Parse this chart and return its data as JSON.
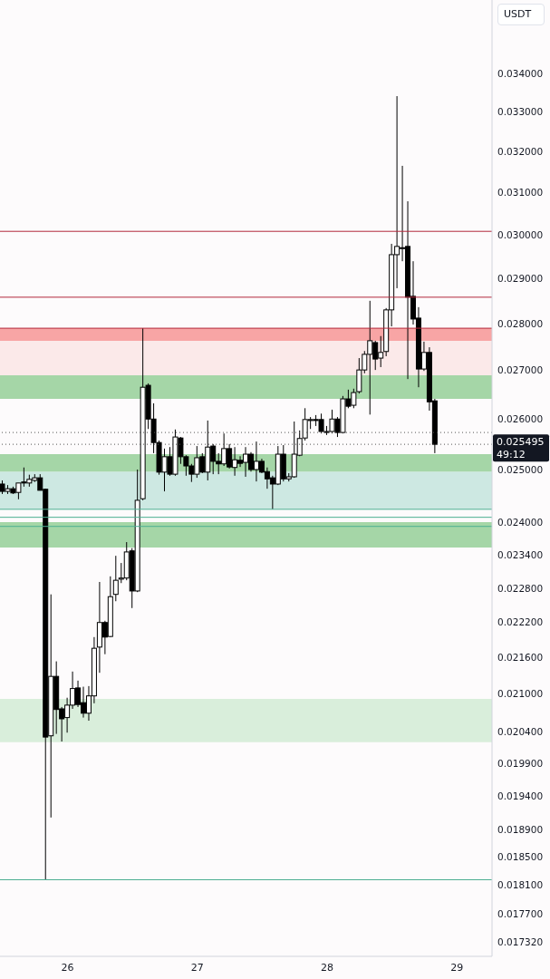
{
  "chart_data": {
    "type": "candlestick",
    "log": true,
    "annotations": [
      "USDT",
      "49:12"
    ],
    "x": [
      25.5,
      25.5417,
      25.5833,
      25.625,
      25.6667,
      25.7083,
      25.75,
      25.7917,
      25.8333,
      25.875,
      25.9167,
      25.9583,
      26,
      26.0417,
      26.0833,
      26.125,
      26.1667,
      26.2083,
      26.25,
      26.2917,
      26.3333,
      26.375,
      26.4167,
      26.4583,
      26.5,
      26.5417,
      26.5833,
      26.625,
      26.6667,
      26.7083,
      26.75,
      26.7917,
      26.8333,
      26.875,
      26.9167,
      26.9583,
      27,
      27.0417,
      27.0833,
      27.125,
      27.1667,
      27.2083,
      27.25,
      27.2917,
      27.3333,
      27.375,
      27.4167,
      27.4583,
      27.5,
      27.5417,
      27.5833,
      27.625,
      27.6667,
      27.7083,
      27.75,
      27.7917,
      27.8333,
      27.875,
      27.9167,
      27.9583,
      28,
      28.0417,
      28.0833,
      28.125,
      28.1667,
      28.2083,
      28.25,
      28.2917,
      28.3333,
      28.375,
      28.4167,
      28.4583,
      28.5,
      28.5417,
      28.5833,
      28.625,
      28.6667,
      28.7083,
      28.75,
      28.7917,
      28.8333
    ],
    "ohlc": [
      [
        0.02472,
        0.02479,
        0.02453,
        0.02458
      ],
      [
        0.02458,
        0.0247,
        0.02453,
        0.02463
      ],
      [
        0.02463,
        0.02467,
        0.02453,
        0.02455
      ],
      [
        0.02456,
        0.02474,
        0.02443,
        0.02474
      ],
      [
        0.02476,
        0.02504,
        0.02467,
        0.02474
      ],
      [
        0.02474,
        0.0249,
        0.02467,
        0.02481
      ],
      [
        0.02479,
        0.02491,
        0.02476,
        0.02484
      ],
      [
        0.02484,
        0.02491,
        0.0246,
        0.0246
      ],
      [
        0.02462,
        0.02463,
        0.01818,
        0.02031
      ],
      [
        0.02033,
        0.02269,
        0.01908,
        0.02129
      ],
      [
        0.02129,
        0.02154,
        0.02036,
        0.02075
      ],
      [
        0.02076,
        0.02079,
        0.02024,
        0.0206
      ],
      [
        0.02062,
        0.02094,
        0.02038,
        0.02082
      ],
      [
        0.02082,
        0.02137,
        0.02076,
        0.02109
      ],
      [
        0.0211,
        0.02122,
        0.02079,
        0.02083
      ],
      [
        0.02086,
        0.02112,
        0.02062,
        0.02069
      ],
      [
        0.02069,
        0.02113,
        0.02057,
        0.02097
      ],
      [
        0.02097,
        0.02195,
        0.02085,
        0.02176
      ],
      [
        0.02178,
        0.02291,
        0.02135,
        0.0222
      ],
      [
        0.0222,
        0.02223,
        0.02166,
        0.02195
      ],
      [
        0.02196,
        0.02301,
        0.02195,
        0.02265
      ],
      [
        0.02269,
        0.02338,
        0.02257,
        0.02294
      ],
      [
        0.02296,
        0.02325,
        0.02289,
        0.02298
      ],
      [
        0.02298,
        0.02363,
        0.02294,
        0.02345
      ],
      [
        0.02347,
        0.02352,
        0.02245,
        0.02275
      ],
      [
        0.02275,
        0.025,
        0.02273,
        0.02441
      ],
      [
        0.02444,
        0.0279,
        0.02441,
        0.02665
      ],
      [
        0.02669,
        0.02673,
        0.0258,
        0.026
      ],
      [
        0.026,
        0.02632,
        0.02532,
        0.02553
      ],
      [
        0.02553,
        0.02557,
        0.0249,
        0.02495
      ],
      [
        0.02495,
        0.02541,
        0.02458,
        0.02525
      ],
      [
        0.02525,
        0.02544,
        0.02488,
        0.02491
      ],
      [
        0.02491,
        0.02579,
        0.02488,
        0.02564
      ],
      [
        0.02562,
        0.02564,
        0.02511,
        0.02525
      ],
      [
        0.02525,
        0.02528,
        0.02488,
        0.02507
      ],
      [
        0.02507,
        0.02511,
        0.02476,
        0.02491
      ],
      [
        0.02491,
        0.02546,
        0.02484,
        0.02523
      ],
      [
        0.02525,
        0.02532,
        0.02493,
        0.02495
      ],
      [
        0.02495,
        0.02597,
        0.02479,
        0.02544
      ],
      [
        0.02546,
        0.0255,
        0.02491,
        0.02516
      ],
      [
        0.02516,
        0.02532,
        0.02491,
        0.02511
      ],
      [
        0.02511,
        0.02571,
        0.02507,
        0.02541
      ],
      [
        0.02541,
        0.0255,
        0.02502,
        0.02505
      ],
      [
        0.02504,
        0.02544,
        0.02488,
        0.02519
      ],
      [
        0.02518,
        0.02526,
        0.02505,
        0.02512
      ],
      [
        0.02514,
        0.02544,
        0.02486,
        0.0253
      ],
      [
        0.0253,
        0.02534,
        0.02496,
        0.025
      ],
      [
        0.025,
        0.02555,
        0.02477,
        0.02516
      ],
      [
        0.02516,
        0.02521,
        0.02493,
        0.02495
      ],
      [
        0.02496,
        0.02504,
        0.02463,
        0.02482
      ],
      [
        0.02484,
        0.02488,
        0.02424,
        0.02472
      ],
      [
        0.02472,
        0.02546,
        0.0247,
        0.0253
      ],
      [
        0.0253,
        0.02548,
        0.02477,
        0.02482
      ],
      [
        0.02482,
        0.02493,
        0.02477,
        0.02486
      ],
      [
        0.02486,
        0.02595,
        0.02484,
        0.0253
      ],
      [
        0.02528,
        0.02577,
        0.02526,
        0.02561
      ],
      [
        0.02562,
        0.02622,
        0.02557,
        0.02599
      ],
      [
        0.02597,
        0.02604,
        0.0258,
        0.02599
      ],
      [
        0.02599,
        0.02608,
        0.02586,
        0.02597
      ],
      [
        0.02599,
        0.02611,
        0.02571,
        0.02575
      ],
      [
        0.02573,
        0.02586,
        0.02568,
        0.02575
      ],
      [
        0.02575,
        0.02619,
        0.02571,
        0.026
      ],
      [
        0.026,
        0.02604,
        0.02564,
        0.02573
      ],
      [
        0.02573,
        0.02647,
        0.02571,
        0.02641
      ],
      [
        0.02641,
        0.0266,
        0.02622,
        0.02626
      ],
      [
        0.02628,
        0.02662,
        0.02622,
        0.02654
      ],
      [
        0.02656,
        0.02726,
        0.02652,
        0.02701
      ],
      [
        0.02701,
        0.02741,
        0.02694,
        0.02734
      ],
      [
        0.02734,
        0.0285,
        0.02609,
        0.02763
      ],
      [
        0.02759,
        0.02763,
        0.02701,
        0.02724
      ],
      [
        0.02726,
        0.02773,
        0.02707,
        0.02738
      ],
      [
        0.0274,
        0.02834,
        0.0273,
        0.0283
      ],
      [
        0.0283,
        0.02979,
        0.02794,
        0.02954
      ],
      [
        0.02954,
        0.03341,
        0.02878,
        0.02973
      ],
      [
        0.02968,
        0.03165,
        0.02939,
        0.0297
      ],
      [
        0.02973,
        0.03079,
        0.02682,
        0.02858
      ],
      [
        0.0286,
        0.02939,
        0.02798,
        0.0281
      ],
      [
        0.02812,
        0.02836,
        0.02665,
        0.02703
      ],
      [
        0.02703,
        0.02761,
        0.02699,
        0.02738
      ],
      [
        0.02738,
        0.02749,
        0.02617,
        0.02635
      ],
      [
        0.02637,
        0.02641,
        0.02532,
        0.025495
      ]
    ],
    "xlim": [
      25.4792,
      29.2708
    ],
    "xticks": [
      26,
      27,
      28,
      29
    ],
    "ylim": [
      0.01713,
      0.036
    ],
    "yticks": [
      {
        "value": 0.034,
        "label": "0.034000"
      },
      {
        "value": 0.033,
        "label": "0.033000"
      },
      {
        "value": 0.032,
        "label": "0.032000"
      },
      {
        "value": 0.031,
        "label": "0.031000"
      },
      {
        "value": 0.03,
        "label": "0.030000"
      },
      {
        "value": 0.029,
        "label": "0.029000"
      },
      {
        "value": 0.028,
        "label": "0.028000"
      },
      {
        "value": 0.027,
        "label": "0.027000"
      },
      {
        "value": 0.026,
        "label": "0.026000"
      },
      {
        "value": 0.025,
        "label": "0.025000"
      },
      {
        "value": 0.024,
        "label": "0.024000"
      },
      {
        "value": 0.0234,
        "label": "0.023400"
      },
      {
        "value": 0.0228,
        "label": "0.022800"
      },
      {
        "value": 0.0222,
        "label": "0.022200"
      },
      {
        "value": 0.0216,
        "label": "0.021600"
      },
      {
        "value": 0.021,
        "label": "0.021000"
      },
      {
        "value": 0.0204,
        "label": "0.020400"
      },
      {
        "value": 0.0199,
        "label": "0.019900"
      },
      {
        "value": 0.0194,
        "label": "0.019400"
      },
      {
        "value": 0.0189,
        "label": "0.018900"
      },
      {
        "value": 0.0185,
        "label": "0.018500"
      },
      {
        "value": 0.0181,
        "label": "0.018100"
      },
      {
        "value": 0.0177,
        "label": "0.017700"
      },
      {
        "value": 0.01732,
        "label": "0.017320"
      }
    ],
    "bands": [
      {
        "axis": "y",
        "from": 0.02023,
        "to": 0.02092,
        "color": "#d9eedb"
      },
      {
        "axis": "y",
        "from": 0.02353,
        "to": 0.024,
        "color": "#a5d6a7"
      },
      {
        "axis": "y",
        "from": 0.02424,
        "to": 0.02496,
        "color": "#cde8e2"
      },
      {
        "axis": "y",
        "from": 0.02496,
        "to": 0.0253,
        "color": "#a5d6a7"
      },
      {
        "axis": "y",
        "from": 0.0269,
        "to": 0.02773,
        "color": "#fbe9e9"
      },
      {
        "axis": "y",
        "from": 0.02763,
        "to": 0.0279,
        "color": "#f8a5a5"
      },
      {
        "axis": "y",
        "from": 0.02641,
        "to": 0.0269,
        "color": "#a5d6a7"
      }
    ],
    "ref_lines": [
      {
        "axis": "y",
        "value": 0.03008,
        "color": "#b2283c",
        "line_style": "solid"
      },
      {
        "axis": "y",
        "value": 0.02858,
        "color": "#b2283c",
        "line_style": "solid"
      },
      {
        "axis": "y",
        "value": 0.0279,
        "color": "#b2283c",
        "line_style": "solid"
      },
      {
        "axis": "y",
        "value": 0.02424,
        "color": "#4caf91",
        "line_style": "solid"
      },
      {
        "axis": "y",
        "value": 0.02409,
        "color": "#4caf91",
        "line_style": "solid"
      },
      {
        "axis": "y",
        "value": 0.02392,
        "color": "#4caf91",
        "line_style": "solid"
      },
      {
        "axis": "y",
        "value": 0.01818,
        "color": "#4caf91",
        "line_style": "solid"
      },
      {
        "axis": "y",
        "value": 0.02573,
        "color": "#555555",
        "line_style": "dotted"
      },
      {
        "axis": "y",
        "value": 0.025495,
        "label": "0.025495",
        "color": "#555555",
        "line_style": "dotted"
      }
    ]
  }
}
